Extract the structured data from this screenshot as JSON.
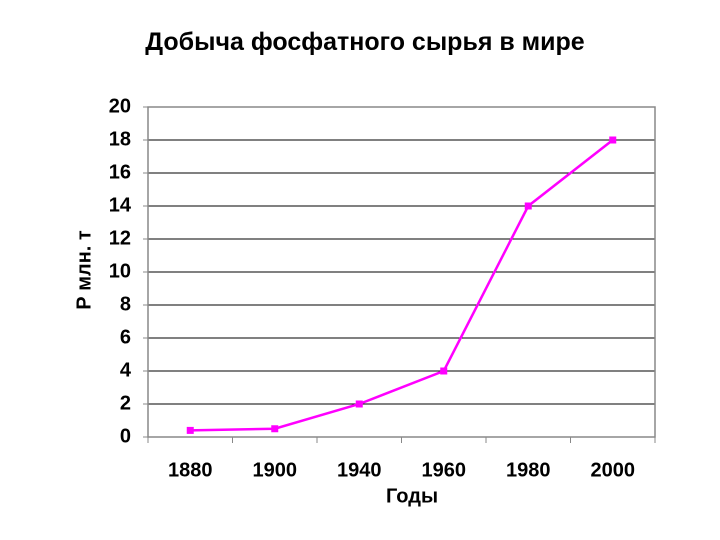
{
  "chart_data": {
    "type": "line",
    "title": "Добыча фосфатного сырья в мире",
    "x_label": "Годы",
    "y_label": "Р млн. т",
    "categories": [
      "1880",
      "1900",
      "1940",
      "1960",
      "1980",
      "2000"
    ],
    "series": [
      {
        "name": "Добыча",
        "color": "#ff00ff",
        "values": [
          0.4,
          0.5,
          2,
          4,
          14,
          18
        ]
      }
    ],
    "ylim": [
      0,
      20
    ],
    "yticks": [
      0,
      2,
      4,
      6,
      8,
      10,
      12,
      14,
      16,
      18,
      20
    ],
    "grid": true
  }
}
